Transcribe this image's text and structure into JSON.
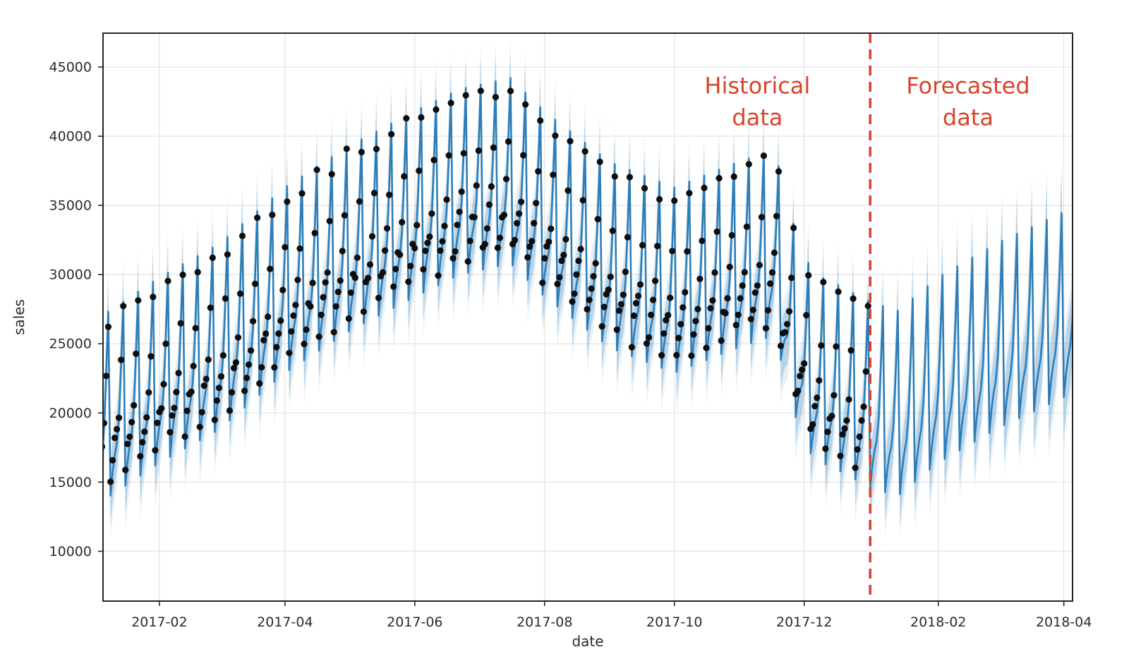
{
  "chart_data": {
    "type": "line",
    "title": "",
    "xlabel": "date",
    "ylabel": "sales",
    "x_axis": {
      "start_date": "2017-01-01",
      "xlim_day_offsets": [
        4.5,
        460.1
      ],
      "tick_labels": [
        "2017-02",
        "2017-04",
        "2017-06",
        "2017-08",
        "2017-10",
        "2017-12",
        "2018-02",
        "2018-04"
      ],
      "tick_day_offsets": [
        31,
        90,
        151,
        212,
        273,
        334,
        397,
        456
      ]
    },
    "y_axis": {
      "ylim": [
        6400,
        47450
      ],
      "tick_values": [
        10000,
        15000,
        20000,
        25000,
        30000,
        35000,
        40000,
        45000
      ]
    },
    "grid": true,
    "legend": null,
    "cutoff": {
      "date": "2018-01-01",
      "day_offset": 365
    },
    "forecast_model": {
      "note": "blue forecast line: yhat(day) = linear_interp(trend_points)(day) + weekly_offsets[day % 7]; day 0 = 2017-01-01 (a Sunday); weekly sawtooth peaks on Sundays (~+6600) and drops to Monday troughs (~-6800)",
      "trend_points": [
        [
          0,
          20000
        ],
        [
          31,
          23200
        ],
        [
          59,
          25600
        ],
        [
          90,
          29700
        ],
        [
          120,
          32700
        ],
        [
          151,
          35200
        ],
        [
          172,
          36800
        ],
        [
          196,
          37600
        ],
        [
          212,
          35200
        ],
        [
          243,
          31500
        ],
        [
          273,
          29700
        ],
        [
          304,
          31600
        ],
        [
          320,
          32400
        ],
        [
          330,
          26500
        ],
        [
          338,
          23500
        ],
        [
          352,
          22500
        ],
        [
          365,
          21400
        ],
        [
          378,
          20800
        ],
        [
          397,
          23200
        ],
        [
          425,
          25700
        ],
        [
          464,
          28500
        ]
      ],
      "weekly_offsets_sun_first": [
        6600,
        -6800,
        -5200,
        -4100,
        -3300,
        -1600,
        2200
      ],
      "uncertainty_halfwidth": 2100,
      "uncertainty_outer_extra": 1100,
      "uncertainty_widen_per_forecast_day": 8,
      "last_day_offset": 464
    },
    "observed_points": {
      "note": "black dots: historical daily sales observations, plotted only up to the cutoff date",
      "day_range": [
        0,
        364
      ],
      "weekly_offsets_sun_first": [
        5900,
        -5600,
        -4400,
        -3400,
        -2700,
        -1200,
        1900
      ],
      "residual_amplitude": 600
    },
    "annotations": [
      {
        "text_lines": [
          "Historical",
          "data"
        ],
        "x_day_offset": 312,
        "y_value": 43100
      },
      {
        "text_lines": [
          "Forecasted",
          "data"
        ],
        "x_day_offset": 411,
        "y_value": 43100
      }
    ]
  },
  "style": {
    "background": "#ffffff",
    "spine_color": "#262626",
    "grid_color": "#e4e4e4",
    "tick_text_color": "#2b2b2b",
    "forecast_line_color": "#2d7db8",
    "uncertainty_band_color": "#1f77b4",
    "observed_dot_color": "#0d0d0d",
    "cutoff_line_color": "#d8442c",
    "annotation_color": "#d8442c"
  }
}
